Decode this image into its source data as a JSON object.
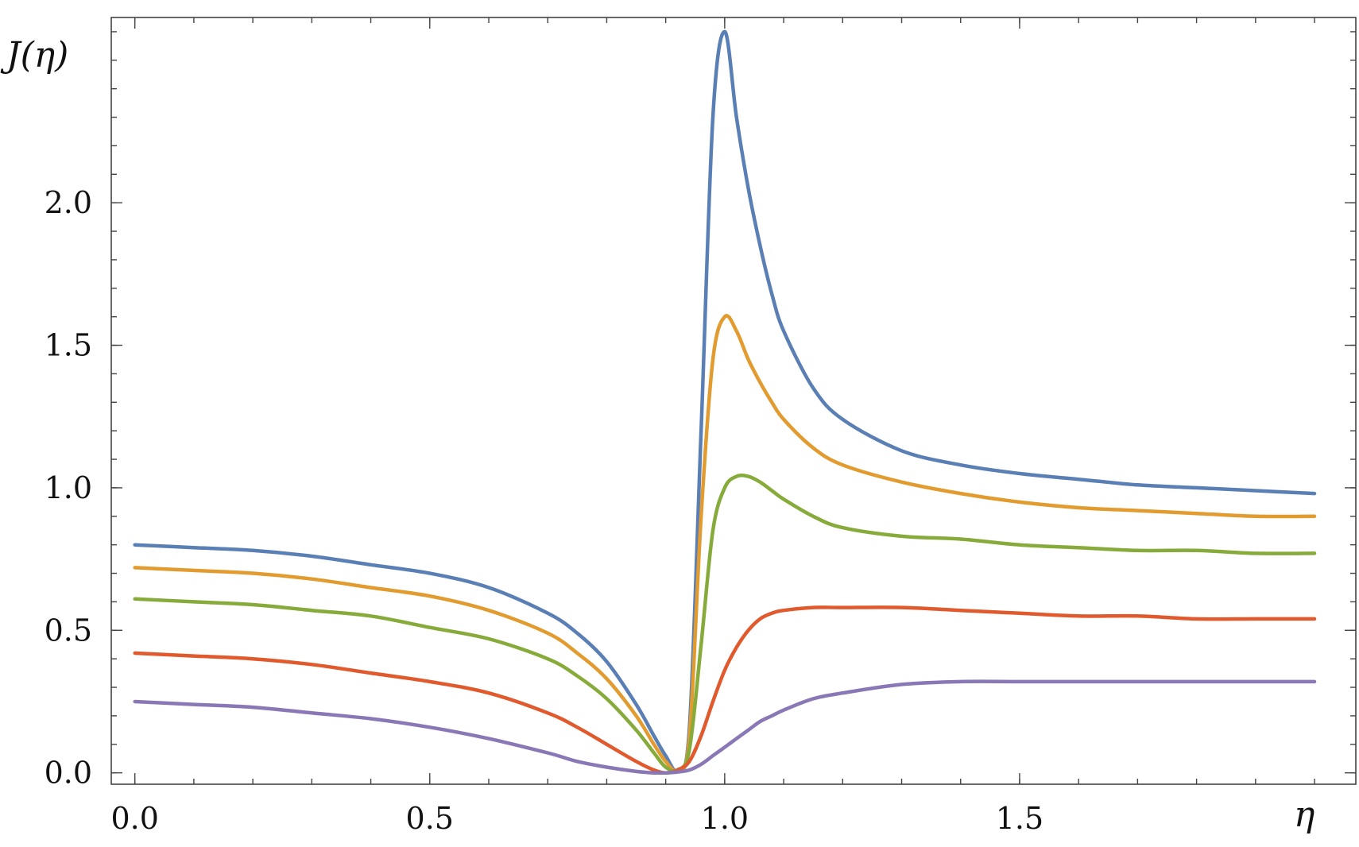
{
  "chart_data": {
    "type": "line",
    "xlabel": "η",
    "ylabel": "J(η)",
    "xlim": [
      -0.04,
      2.07
    ],
    "ylim": [
      -0.04,
      2.65
    ],
    "grid": false,
    "legend": "none",
    "x_ticks": [
      {
        "value": 0.0,
        "label": "0.0"
      },
      {
        "value": 0.5,
        "label": "0.5"
      },
      {
        "value": 1.0,
        "label": "1.0"
      },
      {
        "value": 1.5,
        "label": "1.5"
      }
    ],
    "y_ticks": [
      {
        "value": 0.0,
        "label": "0.0"
      },
      {
        "value": 0.5,
        "label": "0.5"
      },
      {
        "value": 1.0,
        "label": "1.0"
      },
      {
        "value": 1.5,
        "label": "1.5"
      },
      {
        "value": 2.0,
        "label": "2.0"
      }
    ],
    "x_minor_step": 0.1,
    "y_minor_step": 0.1,
    "x": [
      0.0,
      0.1,
      0.2,
      0.3,
      0.4,
      0.5,
      0.6,
      0.7,
      0.75,
      0.8,
      0.85,
      0.88,
      0.9,
      0.92,
      0.94,
      0.96,
      0.98,
      1.0,
      1.02,
      1.04,
      1.06,
      1.08,
      1.1,
      1.15,
      1.2,
      1.3,
      1.4,
      1.5,
      1.6,
      1.7,
      1.8,
      1.9,
      2.0
    ],
    "series": [
      {
        "color": "#5a7fb5",
        "values": [
          0.8,
          0.79,
          0.78,
          0.76,
          0.73,
          0.7,
          0.65,
          0.56,
          0.49,
          0.39,
          0.24,
          0.13,
          0.06,
          0.01,
          0.15,
          1.2,
          2.3,
          2.6,
          2.3,
          2.05,
          1.85,
          1.68,
          1.55,
          1.35,
          1.24,
          1.13,
          1.08,
          1.05,
          1.03,
          1.01,
          1.0,
          0.99,
          0.98
        ]
      },
      {
        "color": "#e29b2f",
        "values": [
          0.72,
          0.71,
          0.7,
          0.68,
          0.65,
          0.62,
          0.57,
          0.49,
          0.42,
          0.33,
          0.2,
          0.1,
          0.04,
          0.01,
          0.12,
          0.9,
          1.45,
          1.6,
          1.55,
          1.45,
          1.37,
          1.3,
          1.24,
          1.14,
          1.08,
          1.02,
          0.98,
          0.95,
          0.93,
          0.92,
          0.91,
          0.9,
          0.9
        ]
      },
      {
        "color": "#86ab3a",
        "values": [
          0.61,
          0.6,
          0.59,
          0.57,
          0.55,
          0.51,
          0.47,
          0.4,
          0.34,
          0.26,
          0.15,
          0.07,
          0.02,
          0.01,
          0.08,
          0.45,
          0.85,
          1.0,
          1.04,
          1.04,
          1.02,
          0.99,
          0.96,
          0.9,
          0.86,
          0.83,
          0.82,
          0.8,
          0.79,
          0.78,
          0.78,
          0.77,
          0.77
        ]
      },
      {
        "color": "#e05a2e",
        "values": [
          0.42,
          0.41,
          0.4,
          0.38,
          0.35,
          0.32,
          0.28,
          0.21,
          0.16,
          0.1,
          0.04,
          0.01,
          0.0,
          0.01,
          0.04,
          0.13,
          0.25,
          0.36,
          0.44,
          0.5,
          0.54,
          0.56,
          0.57,
          0.58,
          0.58,
          0.58,
          0.57,
          0.56,
          0.55,
          0.55,
          0.54,
          0.54,
          0.54
        ]
      },
      {
        "color": "#8a77b5",
        "values": [
          0.25,
          0.24,
          0.23,
          0.21,
          0.19,
          0.16,
          0.12,
          0.07,
          0.04,
          0.02,
          0.005,
          0.0,
          0.0,
          0.003,
          0.01,
          0.03,
          0.06,
          0.09,
          0.12,
          0.15,
          0.18,
          0.2,
          0.22,
          0.26,
          0.28,
          0.31,
          0.32,
          0.32,
          0.32,
          0.32,
          0.32,
          0.32,
          0.32
        ]
      }
    ]
  }
}
